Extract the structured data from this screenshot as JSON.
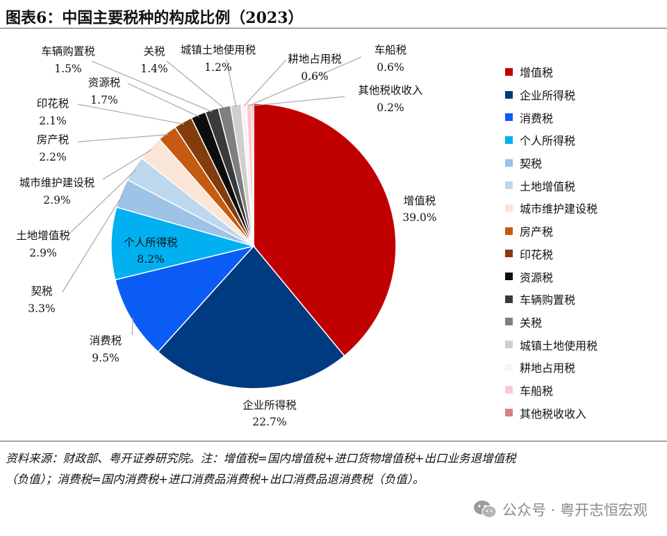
{
  "figure": {
    "title": "图表6：中国主要税种的构成比例（2023）",
    "note_line1": "资料来源：财政部、粤开证券研究院。注：增值税=国内增值税+进口货物增值税+出口业务退增值税",
    "note_line2": "（负值）；消费税=国内消费税+进口消费品消费税+出口消费品退消费税（负值）。",
    "watermark": "公众号 · 粤开志恒宏观",
    "watermark_icon": "wechat-icon"
  },
  "chart_data": {
    "type": "pie",
    "title": "",
    "legend_position": "right",
    "categories": [
      "增值税",
      "企业所得税",
      "消费税",
      "个人所得税",
      "契税",
      "土地增值税",
      "城市维护建设税",
      "房产税",
      "印花税",
      "资源税",
      "车辆购置税",
      "关税",
      "城镇土地使用税",
      "耕地占用税",
      "车船税",
      "其他税收收入"
    ],
    "values": [
      39.0,
      22.7,
      9.5,
      8.2,
      3.3,
      2.9,
      2.9,
      2.2,
      2.1,
      1.7,
      1.5,
      1.4,
      1.2,
      0.6,
      0.6,
      0.2
    ],
    "value_labels": [
      "39.0%",
      "22.7%",
      "9.5%",
      "8.2%",
      "3.3%",
      "2.9%",
      "2.9%",
      "2.2%",
      "2.1%",
      "1.7%",
      "1.5%",
      "1.4%",
      "1.2%",
      "0.6%",
      "0.6%",
      "0.2%"
    ],
    "colors": [
      "#c00000",
      "#003a80",
      "#0a5cf5",
      "#00b0f0",
      "#9dc3e6",
      "#bdd7ee",
      "#fbe5d6",
      "#c55a11",
      "#843c0c",
      "#0d0d0d",
      "#3a3a3a",
      "#7f7f7f",
      "#d0cece",
      "#fff0f5",
      "#ffc7ce",
      "#d98080"
    ]
  }
}
